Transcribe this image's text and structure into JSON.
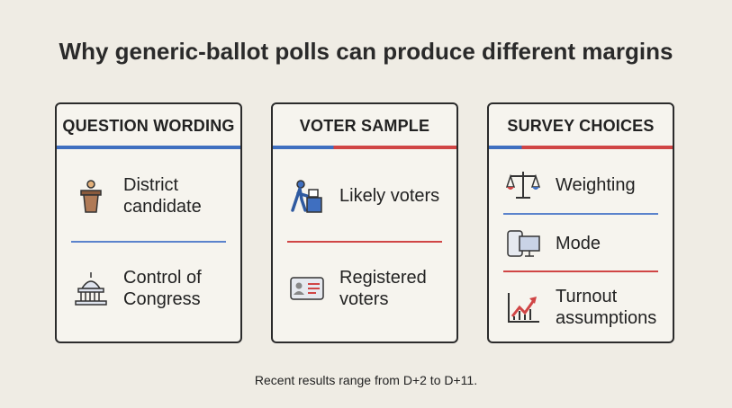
{
  "title": "Why generic-ballot polls can produce different margins",
  "panels": [
    {
      "heading": "QUESTION WORDING",
      "items": [
        {
          "label": "District candidate"
        },
        {
          "label": "Control of Congress"
        }
      ]
    },
    {
      "heading": "VOTER SAMPLE",
      "items": [
        {
          "label": "Likely voters"
        },
        {
          "label": "Registered voters"
        }
      ]
    },
    {
      "heading": "SURVEY CHOICES",
      "items": [
        {
          "label": "Weighting"
        },
        {
          "label": "Mode"
        },
        {
          "label": "Turnout assumptions"
        }
      ]
    }
  ],
  "footnote": "Recent results range from D+2 to D+11."
}
